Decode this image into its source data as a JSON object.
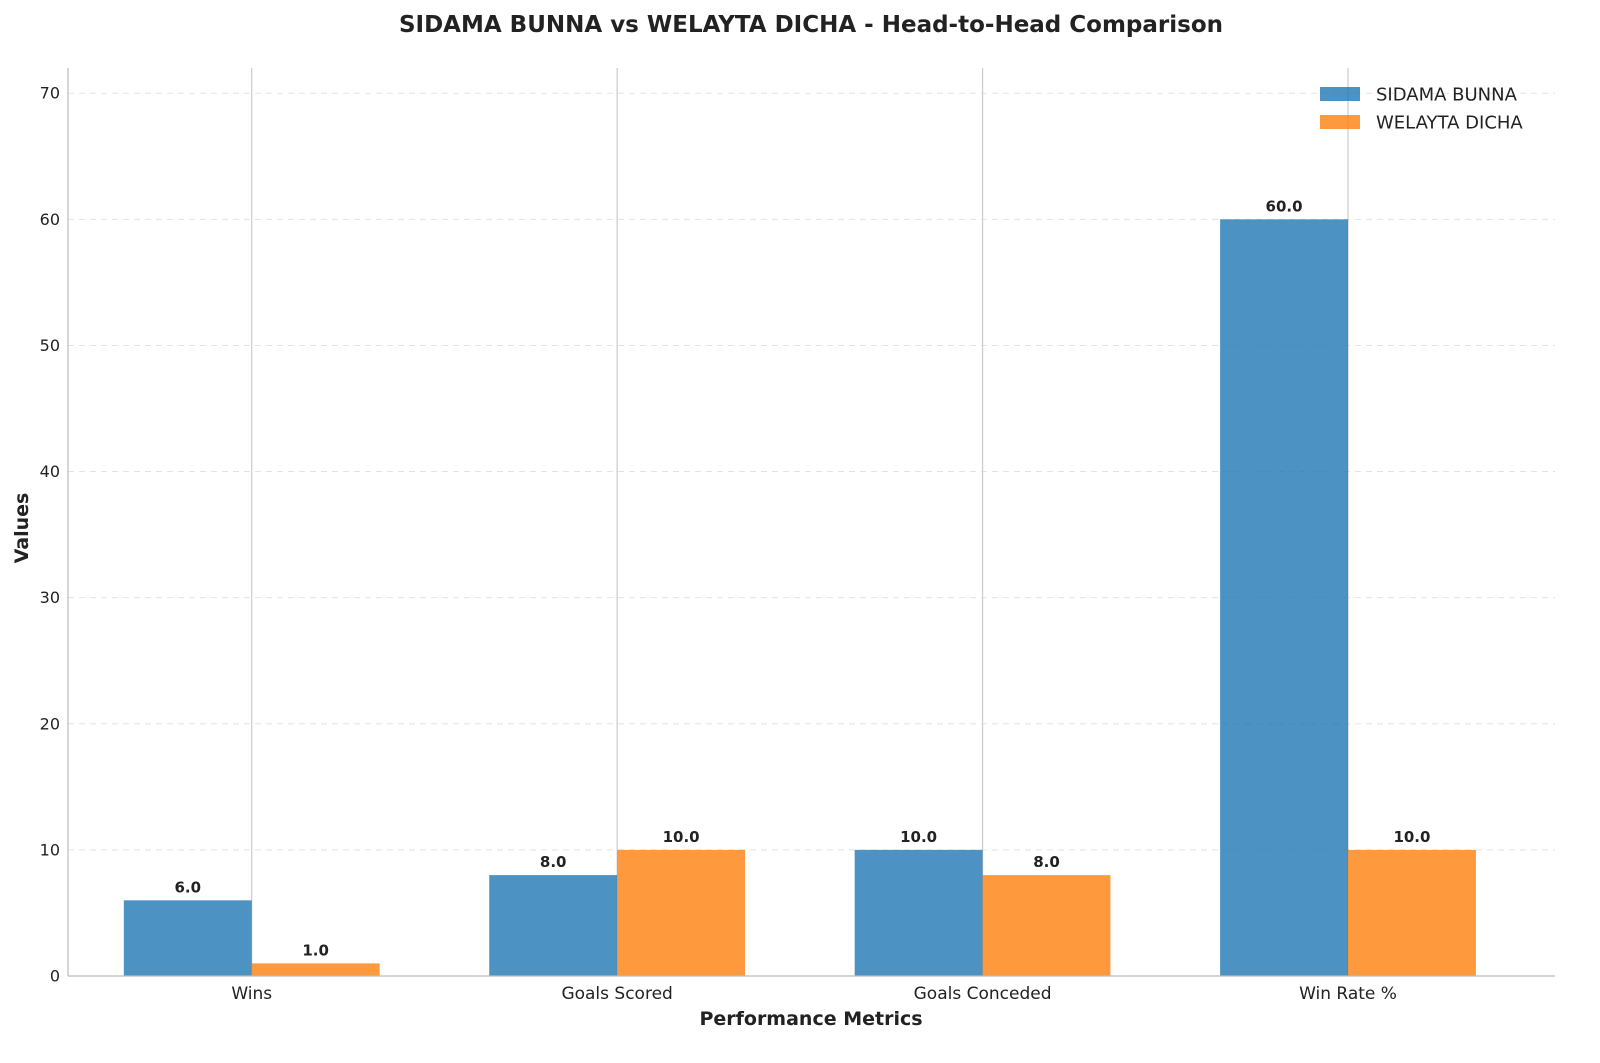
{
  "chart_data": {
    "type": "bar",
    "title": "SIDAMA BUNNA vs WELAYTA DICHA - Head-to-Head Comparison",
    "xlabel": "Performance Metrics",
    "ylabel": "Values",
    "categories": [
      "Wins",
      "Goals Scored",
      "Goals Conceded",
      "Win Rate %"
    ],
    "series": [
      {
        "name": "SIDAMA BUNNA",
        "values": [
          6.0,
          8.0,
          10.0,
          60.0
        ],
        "color": "#1f77b4",
        "labels": [
          "6.0",
          "8.0",
          "10.0",
          "60.0"
        ]
      },
      {
        "name": "WELAYTA DICHA",
        "values": [
          1.0,
          10.0,
          8.0,
          10.0
        ],
        "color": "#ff7f0e",
        "labels": [
          "1.0",
          "10.0",
          "8.0",
          "10.0"
        ]
      }
    ],
    "ylim": [
      0,
      72
    ],
    "yticks": [
      0,
      10,
      20,
      30,
      40,
      50,
      60,
      70
    ],
    "ytick_labels": [
      "0",
      "10",
      "20",
      "30",
      "40",
      "50",
      "60",
      "70"
    ],
    "grid": "y dashed",
    "legend_position": "top-right"
  }
}
